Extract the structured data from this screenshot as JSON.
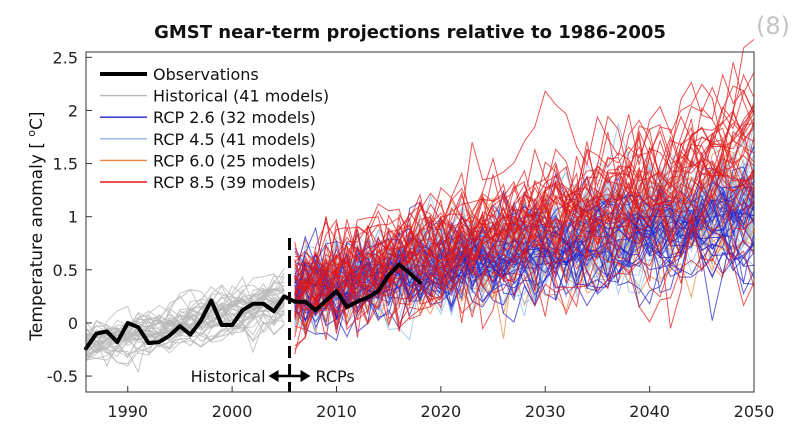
{
  "panel_label": "(8)",
  "chart_data": {
    "type": "line",
    "title": "GMST near-term projections relative to 1986-2005",
    "xlabel": "",
    "ylabel_prefix": "Temperature anomaly  [ ",
    "ylabel_sup": "o",
    "ylabel_suffix": "C]",
    "xlim": [
      1986,
      2050
    ],
    "ylim": [
      -0.65,
      2.55
    ],
    "xticks": [
      "1990",
      "2000",
      "2010",
      "2020",
      "2030",
      "2040",
      "2050"
    ],
    "yticks": [
      "-0.5",
      "0",
      "0.5",
      "1",
      "1.5",
      "2",
      "2.5"
    ],
    "legend_position": "top-left",
    "split_year": 2005.5,
    "annotation": {
      "left": "Historical",
      "right": "RCPs"
    },
    "colors": {
      "observations": "#000000",
      "historical": "#b9b9b9",
      "rcp26": "#2222cc",
      "rcp45": "#8fb8e8",
      "rcp60": "#e8843a",
      "rcp85": "#e01818"
    },
    "series": [
      {
        "name": "Observations",
        "key": "observations",
        "x": [
          1986,
          1987,
          1988,
          1989,
          1990,
          1991,
          1992,
          1993,
          1994,
          1995,
          1996,
          1997,
          1998,
          1999,
          2000,
          2001,
          2002,
          2003,
          2004,
          2005,
          2006,
          2007,
          2008,
          2009,
          2010,
          2011,
          2012,
          2013,
          2014,
          2015,
          2016,
          2017,
          2018
        ],
        "values": [
          -0.24,
          -0.1,
          -0.08,
          -0.18,
          0.0,
          -0.04,
          -0.19,
          -0.18,
          -0.12,
          -0.03,
          -0.11,
          0.02,
          0.21,
          -0.02,
          -0.02,
          0.12,
          0.18,
          0.18,
          0.11,
          0.25,
          0.2,
          0.2,
          0.12,
          0.21,
          0.3,
          0.15,
          0.2,
          0.24,
          0.3,
          0.45,
          0.55,
          0.47,
          0.38
        ]
      },
      {
        "name": "Historical (41 models)",
        "key": "historical",
        "model_count": 41,
        "years": [
          1986,
          2005
        ],
        "trend": [
          -0.22,
          0.2
        ],
        "spread": 0.13
      },
      {
        "name": "RCP 2.6 (32 models)",
        "key": "rcp26",
        "model_count": 32,
        "years": [
          2006,
          2050
        ],
        "trend": [
          0.3,
          0.98
        ],
        "spread": 0.28
      },
      {
        "name": "RCP 4.5 (41 models)",
        "key": "rcp45",
        "model_count": 41,
        "years": [
          2006,
          2050
        ],
        "trend": [
          0.3,
          1.22
        ],
        "spread": 0.28
      },
      {
        "name": "RCP 6.0 (25 models)",
        "key": "rcp60",
        "model_count": 25,
        "years": [
          2006,
          2050
        ],
        "trend": [
          0.28,
          1.1
        ],
        "spread": 0.26
      },
      {
        "name": "RCP 8.5 (39 models)",
        "key": "rcp85",
        "model_count": 39,
        "years": [
          2006,
          2050
        ],
        "trend": [
          0.33,
          1.62
        ],
        "spread": 0.32
      }
    ]
  }
}
